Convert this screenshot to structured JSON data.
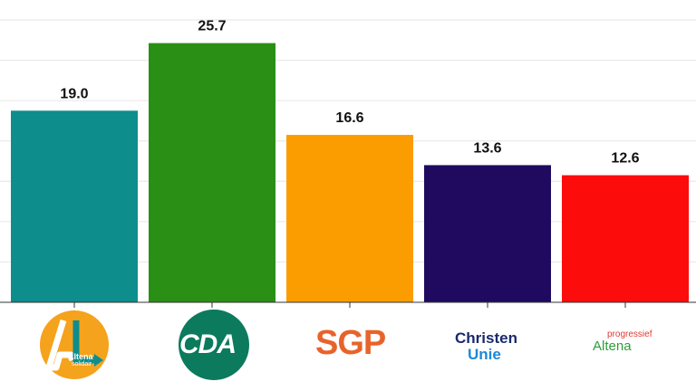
{
  "chart_data": {
    "type": "bar",
    "categories": [
      "Altena Solidair",
      "CDA",
      "SGP",
      "ChristenUnie",
      "Altena progressief"
    ],
    "values": [
      19.0,
      25.7,
      16.6,
      13.6,
      12.6
    ],
    "value_labels": [
      "19.0",
      "25.7",
      "16.6",
      "13.6",
      "12.6"
    ],
    "colors": [
      "#0e8d8d",
      "#2a8f15",
      "#fb9d00",
      "#1f0a60",
      "#fd0c0c"
    ],
    "ylim": [
      0,
      28
    ],
    "grid": true
  },
  "logos": {
    "altena": {
      "line1": "Altena",
      "line2": "solidair"
    },
    "cda": {
      "text": "CDA",
      "color": "#0b7a5d"
    },
    "sgp": {
      "text": "SGP"
    },
    "cu": {
      "line1": "Christen",
      "line2": "Unie"
    },
    "ap": {
      "small": "progressief",
      "main": "Altena"
    }
  }
}
